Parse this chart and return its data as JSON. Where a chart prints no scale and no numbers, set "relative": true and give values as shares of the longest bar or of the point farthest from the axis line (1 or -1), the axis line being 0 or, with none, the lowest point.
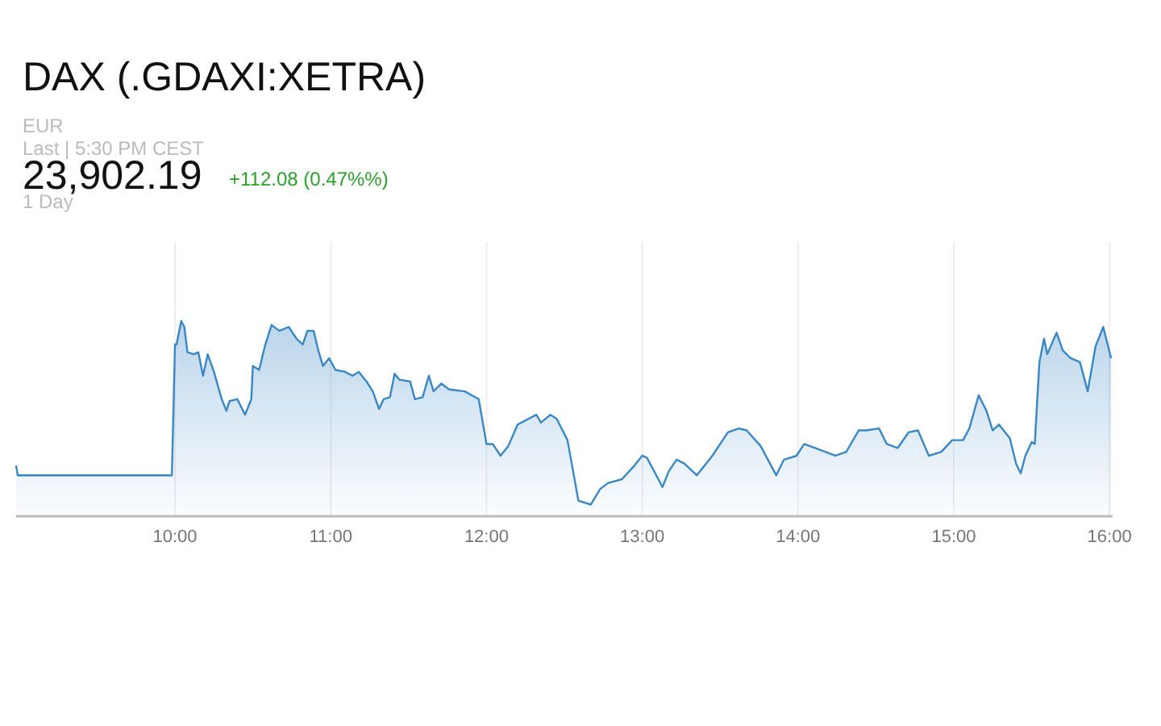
{
  "chart_data": {
    "type": "area",
    "title": "DAX (.GDAXI:XETRA)",
    "relative": true,
    "grid": "x",
    "color": "#3a87c6",
    "annotations": [
      "EUR",
      "Last | 5:30 PM CEST",
      "23,902.19",
      "+112.08 (0.47%%)",
      "1 Day"
    ],
    "xlim": [
      8.98,
      16.02
    ],
    "xticks": [
      {
        "value": 10,
        "label": "10:00"
      },
      {
        "value": 11,
        "label": "11:00"
      },
      {
        "value": 12,
        "label": "12:00"
      },
      {
        "value": 13,
        "label": "13:00"
      },
      {
        "value": 14,
        "label": "14:00"
      },
      {
        "value": 15,
        "label": "15:00"
      },
      {
        "value": 16,
        "label": "16:00"
      }
    ],
    "x": [
      8.98,
      8.99,
      9.98,
      10.0,
      10.01,
      10.04,
      10.06,
      10.08,
      10.12,
      10.15,
      10.18,
      10.21,
      10.25,
      10.3,
      10.33,
      10.35,
      10.4,
      10.45,
      10.49,
      10.5,
      10.54,
      10.58,
      10.62,
      10.67,
      10.73,
      10.78,
      10.82,
      10.85,
      10.89,
      10.92,
      10.95,
      10.99,
      11.03,
      11.09,
      11.14,
      11.18,
      11.23,
      11.27,
      11.31,
      11.34,
      11.38,
      11.41,
      11.44,
      11.51,
      11.54,
      11.59,
      11.63,
      11.66,
      11.71,
      11.76,
      11.86,
      11.95,
      12.0,
      12.04,
      12.09,
      12.14,
      12.2,
      12.32,
      12.35,
      12.41,
      12.45,
      12.52,
      12.59,
      12.67,
      12.73,
      12.78,
      12.87,
      12.95,
      13.0,
      13.03,
      13.13,
      13.17,
      13.22,
      13.27,
      13.35,
      13.45,
      13.55,
      13.62,
      13.67,
      13.76,
      13.86,
      13.91,
      13.99,
      14.04,
      14.11,
      14.24,
      14.31,
      14.39,
      14.44,
      14.52,
      14.57,
      14.64,
      14.71,
      14.77,
      14.84,
      14.92,
      14.99,
      15.06,
      15.1,
      15.16,
      15.21,
      15.25,
      15.29,
      15.33,
      15.36,
      15.4,
      15.43,
      15.46,
      15.5,
      15.52,
      15.55,
      15.58,
      15.6,
      15.66,
      15.7,
      15.75,
      15.81,
      15.86,
      15.91,
      15.96,
      16.01
    ],
    "values": [
      0.26,
      0.21,
      0.21,
      0.88,
      0.88,
      1.0,
      0.97,
      0.84,
      0.83,
      0.84,
      0.72,
      0.83,
      0.74,
      0.6,
      0.54,
      0.59,
      0.6,
      0.52,
      0.6,
      0.77,
      0.75,
      0.88,
      0.98,
      0.95,
      0.97,
      0.91,
      0.88,
      0.95,
      0.95,
      0.85,
      0.77,
      0.81,
      0.75,
      0.74,
      0.72,
      0.74,
      0.69,
      0.64,
      0.55,
      0.6,
      0.61,
      0.73,
      0.7,
      0.69,
      0.6,
      0.61,
      0.72,
      0.64,
      0.68,
      0.65,
      0.64,
      0.6,
      0.37,
      0.37,
      0.31,
      0.36,
      0.47,
      0.52,
      0.48,
      0.52,
      0.5,
      0.39,
      0.08,
      0.06,
      0.14,
      0.17,
      0.19,
      0.26,
      0.31,
      0.3,
      0.15,
      0.23,
      0.29,
      0.27,
      0.21,
      0.31,
      0.43,
      0.45,
      0.44,
      0.36,
      0.21,
      0.29,
      0.31,
      0.37,
      0.35,
      0.31,
      0.33,
      0.44,
      0.44,
      0.45,
      0.37,
      0.35,
      0.43,
      0.44,
      0.31,
      0.33,
      0.39,
      0.39,
      0.45,
      0.62,
      0.54,
      0.44,
      0.47,
      0.43,
      0.4,
      0.27,
      0.22,
      0.31,
      0.38,
      0.37,
      0.79,
      0.91,
      0.83,
      0.94,
      0.85,
      0.81,
      0.79,
      0.64,
      0.87,
      0.97,
      0.81
    ]
  }
}
